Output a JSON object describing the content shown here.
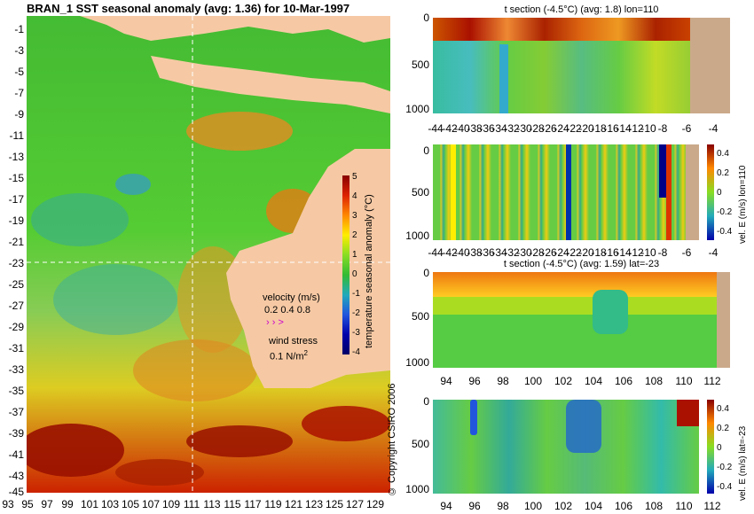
{
  "map": {
    "title": "BRAN_1  SST seasonal anomaly  (avg: 1.36) for 10-Mar-1997",
    "y_ticks": [
      "-1",
      "-3",
      "-5",
      "-7",
      "-9",
      "-11",
      "-13",
      "-15",
      "-17",
      "-19",
      "-21",
      "-23",
      "-25",
      "-27",
      "-29",
      "-31",
      "-33",
      "-35",
      "-37",
      "-39",
      "-41",
      "-43",
      "-45"
    ],
    "x_ticks": [
      "93",
      "95",
      "97",
      "99",
      "101",
      "103",
      "105",
      "107",
      "109",
      "111",
      "113",
      "115",
      "117",
      "119",
      "121",
      "123",
      "125",
      "127",
      "129"
    ],
    "colorbar": {
      "label": "temperature seasonal anomaly (°C)",
      "ticks": [
        "5",
        "4",
        "3",
        "2",
        "1",
        "0",
        "-1",
        "-2",
        "-3",
        "-4"
      ]
    },
    "velocity_legend": {
      "title": "velocity (m/s)",
      "values": "0.2 0.4 0.8"
    },
    "wind_legend": {
      "title": "wind stress",
      "value": "0.1 N/m",
      "unit_sup": "2"
    },
    "copyright": "© Copyright CSIRO 2006"
  },
  "panels": [
    {
      "title": "t section (-4.5°C) (avg: 1.8) lon=110",
      "y_ticks": [
        "0",
        "500",
        "1000"
      ],
      "x_ticks": [
        "-44",
        "-42",
        "-40",
        "-38",
        "-36",
        "-34",
        "-32",
        "-30",
        "-28",
        "-26",
        "-24",
        "-22",
        "-20",
        "-18",
        "-16",
        "-14",
        "-12",
        "-10",
        "-8",
        "-6",
        "-4"
      ]
    },
    {
      "title": "",
      "y_ticks": [
        "0",
        "500",
        "1000"
      ],
      "x_ticks": [
        "-44",
        "-42",
        "-40",
        "-38",
        "-36",
        "-34",
        "-32",
        "-30",
        "-28",
        "-26",
        "-24",
        "-22",
        "-20",
        "-18",
        "-16",
        "-14",
        "-12",
        "-10",
        "-8",
        "-6",
        "-4"
      ],
      "cbar_label": "vel. E (m/s) lon=110",
      "cbar_ticks": [
        "0.4",
        "0.2",
        "0",
        "-0.2",
        "-0.4"
      ]
    },
    {
      "title": "t section (-4.5°C) (avg: 1.59) lat=-23",
      "y_ticks": [
        "0",
        "500",
        "1000"
      ],
      "x_ticks": [
        "94",
        "96",
        "98",
        "100",
        "102",
        "104",
        "106",
        "108",
        "110",
        "112"
      ]
    },
    {
      "title": "",
      "y_ticks": [
        "0",
        "500",
        "1000"
      ],
      "x_ticks": [
        "94",
        "96",
        "98",
        "100",
        "102",
        "104",
        "106",
        "108",
        "110",
        "112"
      ],
      "cbar_label": "vel. E (m/s) lat=-23",
      "cbar_ticks": [
        "0.4",
        "0.2",
        "0",
        "-0.2",
        "-0.4"
      ]
    }
  ]
}
